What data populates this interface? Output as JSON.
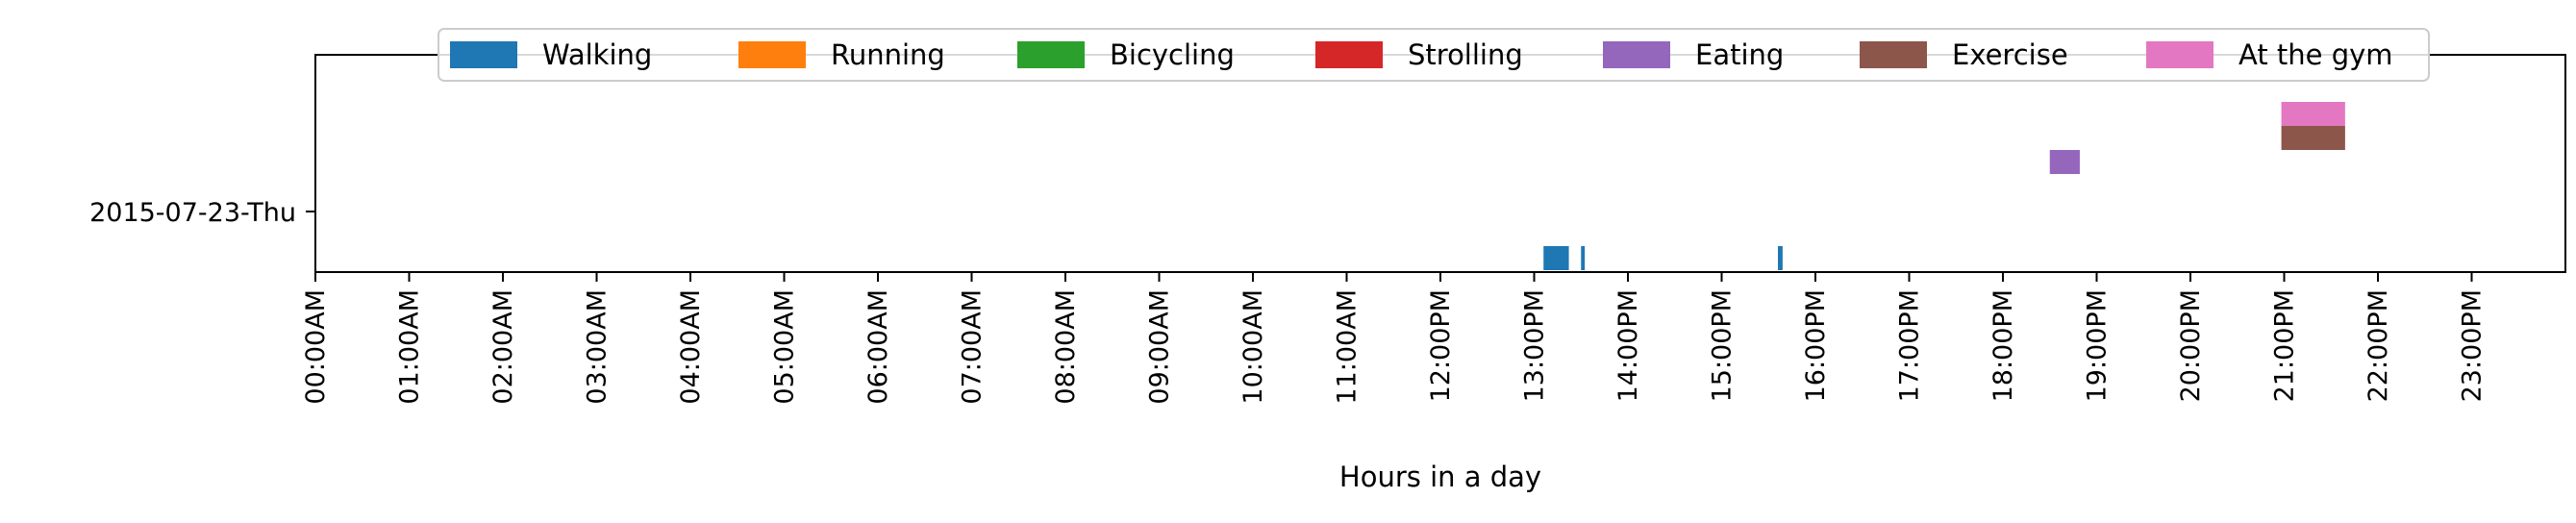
{
  "chart_data": {
    "type": "timeline",
    "title": "",
    "xlabel": "Hours in a day",
    "ylabel": "",
    "xlim": [
      0,
      24
    ],
    "grid": false,
    "legend_placement": "top-center",
    "categories": [
      "2015-07-23-Thu"
    ],
    "x_tick_labels": [
      "00:00AM",
      "01:00AM",
      "02:00AM",
      "03:00AM",
      "04:00AM",
      "05:00AM",
      "06:00AM",
      "07:00AM",
      "08:00AM",
      "09:00AM",
      "10:00AM",
      "11:00AM",
      "12:00PM",
      "13:00PM",
      "14:00PM",
      "15:00PM",
      "16:00PM",
      "17:00PM",
      "18:00PM",
      "19:00PM",
      "20:00PM",
      "21:00PM",
      "22:00PM",
      "23:00PM"
    ],
    "series": [
      {
        "name": "Walking",
        "color": "#1f77b4",
        "intervals": [
          [
            13.1,
            13.37
          ],
          [
            13.5,
            13.54
          ],
          [
            15.6,
            15.65
          ]
        ]
      },
      {
        "name": "Running",
        "color": "#ff7f0e",
        "intervals": []
      },
      {
        "name": "Bicycling",
        "color": "#2ca02c",
        "intervals": []
      },
      {
        "name": "Strolling",
        "color": "#d62728",
        "intervals": []
      },
      {
        "name": "Eating",
        "color": "#9467bd",
        "intervals": [
          [
            18.5,
            18.82
          ]
        ]
      },
      {
        "name": "Exercise",
        "color": "#8c564b",
        "intervals": [
          [
            20.97,
            21.65
          ]
        ]
      },
      {
        "name": "At the gym",
        "color": "#e377c2",
        "intervals": [
          [
            20.97,
            21.65
          ]
        ]
      }
    ]
  }
}
